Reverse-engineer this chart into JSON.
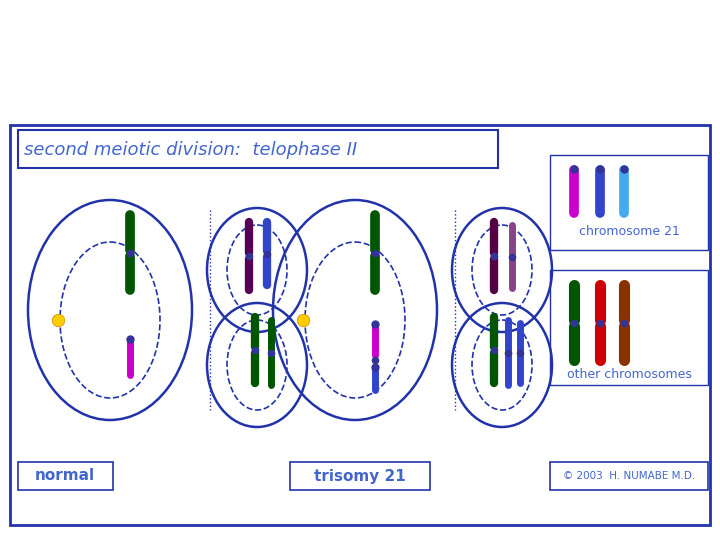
{
  "title": "second meiotic division:  telophase II",
  "title_color": "#4466cc",
  "bg_color": "#ffffff",
  "border_color": "#2233aa",
  "label_normal": "normal",
  "label_trisomy": "trisomy 21",
  "label_chr21": "chromosome 21",
  "label_other": "other chromosomes",
  "copyright": "© 2003  H. NUMABE M.D.",
  "label_color": "#4466cc",
  "chr21_colors": [
    "#cc00cc",
    "#3344cc",
    "#44aaee"
  ],
  "other_chr_colors": [
    "#005500",
    "#cc0000",
    "#883300"
  ],
  "cell_border": "#2233aa",
  "yellow_dot": "#ffcc00",
  "blue_dot": "#333399",
  "green_chr": "#005500",
  "magenta_chr": "#cc00cc",
  "blue_chr": "#3344cc",
  "darkblue_chr": "#223388"
}
